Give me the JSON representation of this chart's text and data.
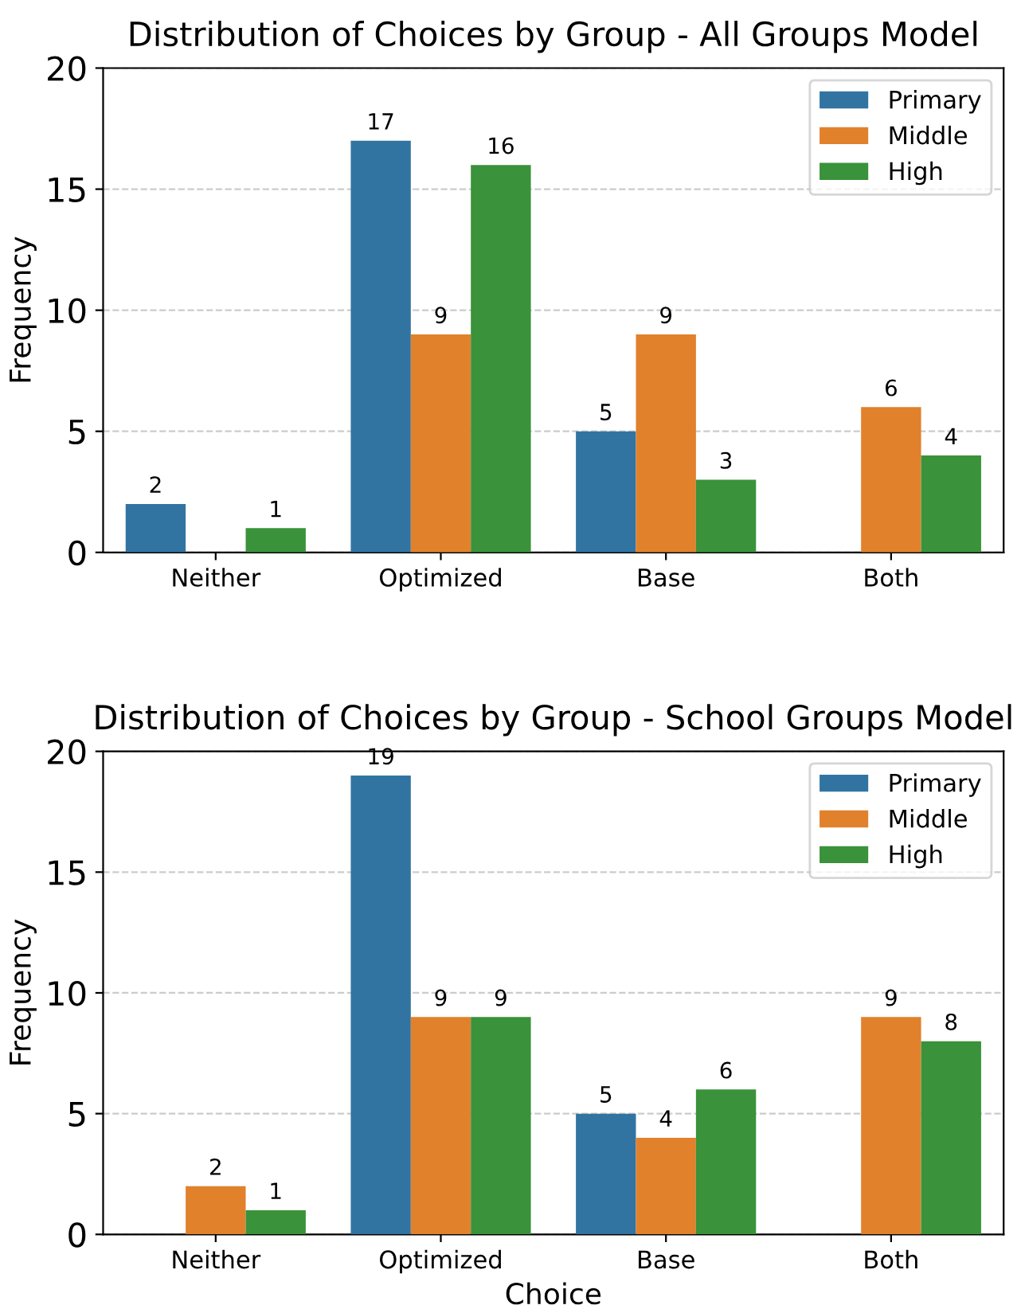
{
  "chart_data": [
    {
      "type": "bar",
      "title": "Distribution of Choices by Group - All Groups Model",
      "ylabel": "Frequency",
      "categories": [
        "Neither",
        "Optimized",
        "Base",
        "Both"
      ],
      "series": [
        {
          "name": "Primary",
          "color": "#3274a1",
          "values": [
            2,
            17,
            5,
            null
          ]
        },
        {
          "name": "Middle",
          "color": "#e1812c",
          "values": [
            null,
            9,
            9,
            6
          ]
        },
        {
          "name": "High",
          "color": "#3a923a",
          "values": [
            1,
            16,
            3,
            4
          ]
        }
      ],
      "ylim": [
        0,
        20
      ],
      "yticks": [
        0,
        5,
        10,
        15,
        20
      ],
      "grid": "y",
      "legend": "top right",
      "data_labels": true
    },
    {
      "type": "bar",
      "title": "Distribution of Choices by Group - School Groups Model",
      "xlabel": "Choice",
      "ylabel": "Frequency",
      "categories": [
        "Neither",
        "Optimized",
        "Base",
        "Both"
      ],
      "series": [
        {
          "name": "Primary",
          "color": "#3274a1",
          "values": [
            null,
            19,
            5,
            null
          ]
        },
        {
          "name": "Middle",
          "color": "#e1812c",
          "values": [
            2,
            9,
            4,
            9
          ]
        },
        {
          "name": "High",
          "color": "#3a923a",
          "values": [
            1,
            9,
            6,
            8
          ]
        }
      ],
      "ylim": [
        0,
        20
      ],
      "yticks": [
        0,
        5,
        10,
        15,
        20
      ],
      "grid": "y",
      "legend": "top right",
      "data_labels": true
    }
  ]
}
